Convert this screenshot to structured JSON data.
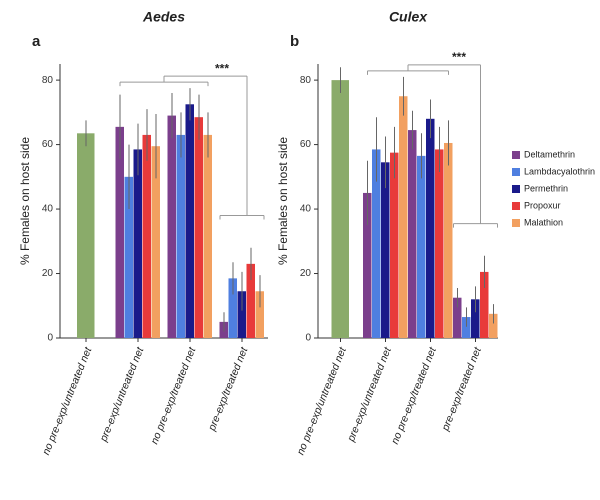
{
  "chart_data": [
    {
      "type": "bar",
      "panel": "a",
      "title": "Aedes",
      "y_label": "% Females on host side",
      "categories": [
        "no pre-exp/untreated net",
        "pre-exp/untreated net",
        "no pre-exp/treated net",
        "pre-exp/treated net"
      ],
      "ylim": [
        0,
        85
      ],
      "yticks": [
        0,
        20,
        40,
        60,
        80
      ],
      "annotation": "***",
      "series": [
        {
          "color": "#8aab6a",
          "values": [
            63.5,
            null,
            null,
            null
          ],
          "errors": [
            4,
            null,
            null,
            null
          ]
        },
        {
          "color": "#7b3f8c",
          "values": [
            null,
            65.5,
            69,
            5
          ],
          "errors": [
            null,
            10,
            7,
            3
          ]
        },
        {
          "color": "#4f7fe0",
          "values": [
            null,
            50,
            63,
            18.5
          ],
          "errors": [
            null,
            10,
            7,
            5
          ]
        },
        {
          "color": "#1a1a8a",
          "values": [
            null,
            58.5,
            72.5,
            14.5
          ],
          "errors": [
            null,
            8,
            5,
            6
          ]
        },
        {
          "color": "#e83a3a",
          "values": [
            null,
            63,
            68.5,
            23
          ],
          "errors": [
            null,
            8,
            7,
            5
          ]
        },
        {
          "color": "#f2a060",
          "values": [
            null,
            59.5,
            63,
            14.5
          ],
          "errors": [
            null,
            10,
            7,
            5
          ]
        }
      ]
    },
    {
      "type": "bar",
      "panel": "b",
      "title": "Culex",
      "y_label": "% Females on host side",
      "categories": [
        "no pre-exp/untreated net",
        "pre-exp/untreated net",
        "no pre-exp/treated net",
        "pre-exp/treated net"
      ],
      "ylim": [
        0,
        85
      ],
      "yticks": [
        0,
        20,
        40,
        60,
        80
      ],
      "annotation": "***",
      "legend": "right",
      "series": [
        {
          "color": "#8aab6a",
          "values": [
            80,
            null,
            null,
            null
          ],
          "errors": [
            4,
            null,
            null,
            null
          ]
        },
        {
          "name": "Deltamethrin",
          "color": "#7b3f8c",
          "values": [
            null,
            45,
            64.5,
            12.5
          ],
          "errors": [
            null,
            10,
            6,
            3
          ]
        },
        {
          "name": "Lambdacyalothrin",
          "color": "#4f7fe0",
          "values": [
            null,
            58.5,
            56.5,
            6.5
          ],
          "errors": [
            null,
            10,
            7,
            3
          ]
        },
        {
          "name": "Permethrin",
          "color": "#1a1a8a",
          "values": [
            null,
            54.5,
            68,
            12
          ],
          "errors": [
            null,
            8,
            6,
            4
          ]
        },
        {
          "name": "Propoxur",
          "color": "#e83a3a",
          "values": [
            null,
            57.5,
            58.5,
            20.5
          ],
          "errors": [
            null,
            8,
            7,
            5
          ]
        },
        {
          "name": "Malathion",
          "color": "#f2a060",
          "values": [
            null,
            75,
            60.5,
            7.5
          ],
          "errors": [
            null,
            6,
            7,
            3
          ]
        }
      ]
    }
  ]
}
